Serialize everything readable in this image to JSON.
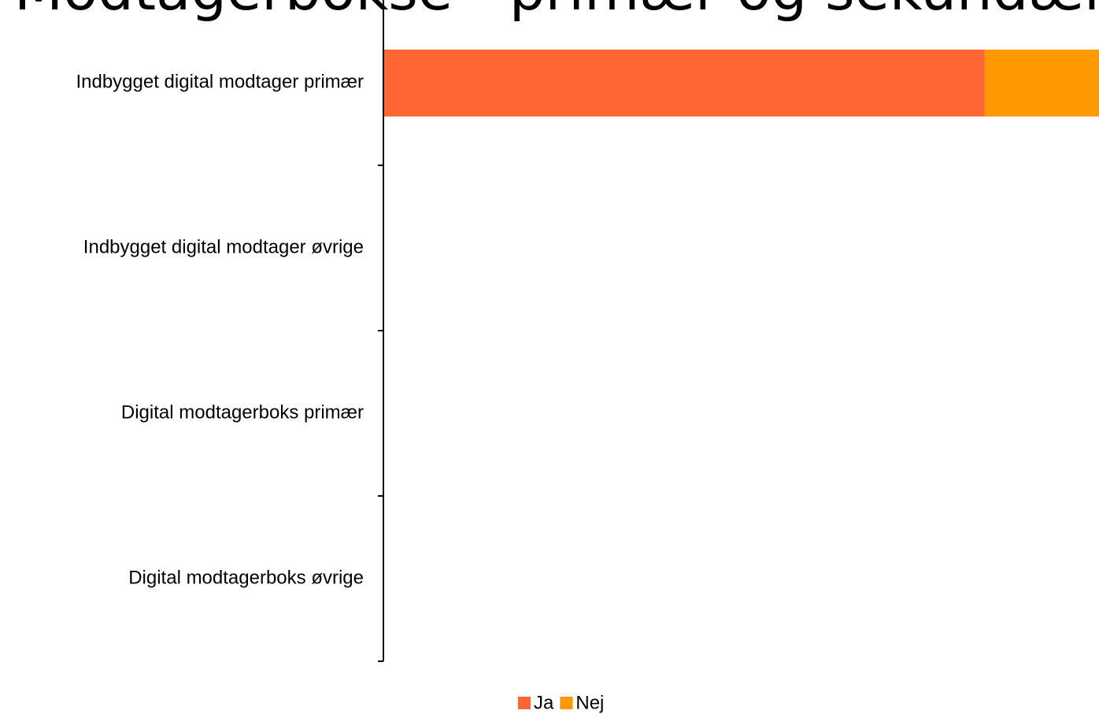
{
  "chart_data": {
    "type": "stacked_bar_horizontal",
    "title": "Modtagerbokse - primær og sekundær",
    "categories": [
      "Indbygget digital modtager primær",
      "Indbygget digital modtager øvrige",
      "Digital modtagerboks primær",
      "Digital modtagerboks øvrige"
    ],
    "series": [
      {
        "name": "Ja",
        "color": "#ff6633",
        "values": [
          84,
          null,
          null,
          null
        ]
      },
      {
        "name": "Nej",
        "color": "#ff9900",
        "values": [
          16,
          null,
          null,
          null
        ]
      }
    ],
    "xlim": [
      0,
      100
    ],
    "legend": "bottom"
  }
}
